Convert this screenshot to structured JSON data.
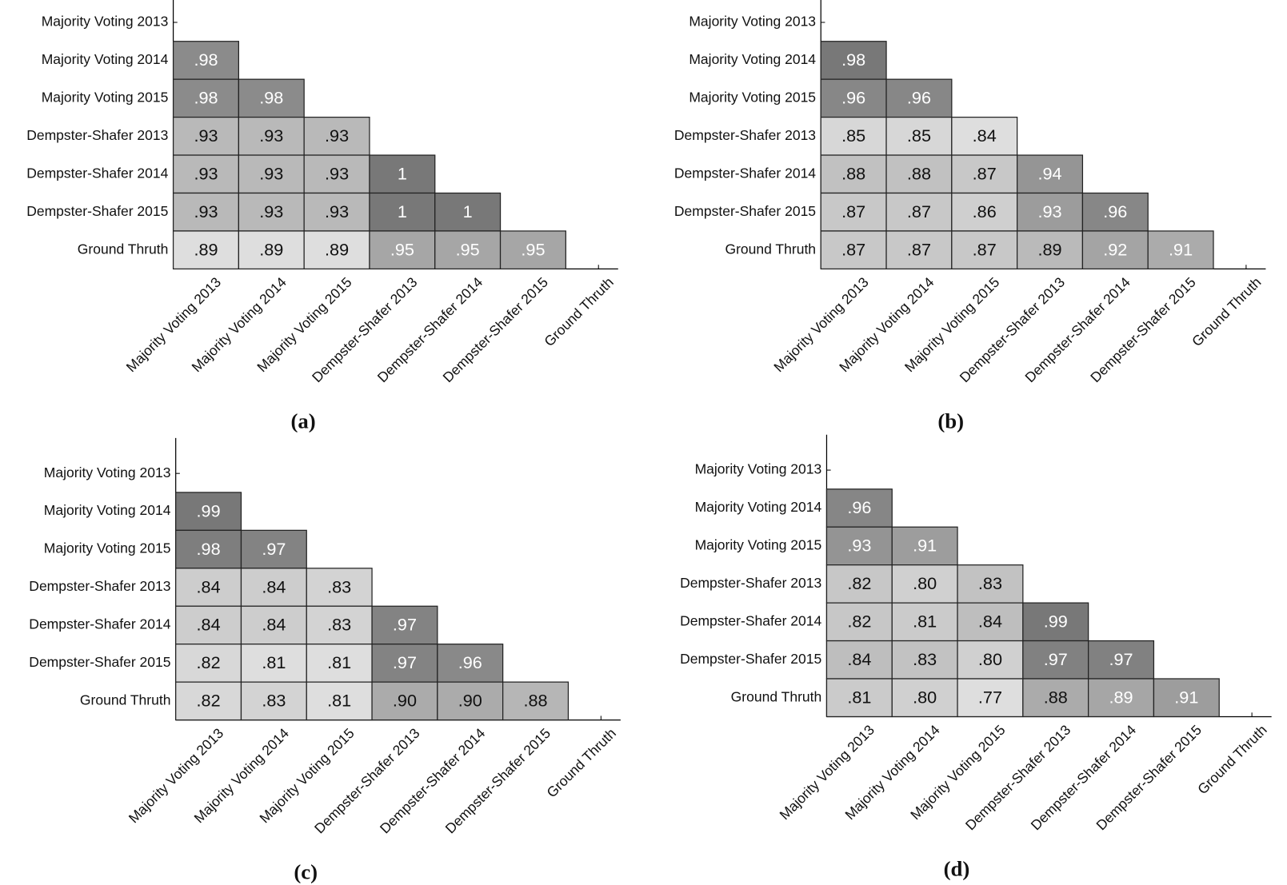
{
  "chart_data": [
    {
      "type": "heatmap",
      "caption": "(a)",
      "categories": [
        "Majority Voting 2013",
        "Majority Voting 2014",
        "Majority Voting 2015",
        "Dempster-Shafer 2013",
        "Dempster-Shafer 2014",
        "Dempster-Shafer 2015",
        "Ground Thruth"
      ],
      "values": [
        [],
        [
          0.98
        ],
        [
          0.98,
          0.98
        ],
        [
          0.93,
          0.93,
          0.93
        ],
        [
          0.93,
          0.93,
          0.93,
          1
        ],
        [
          0.93,
          0.93,
          0.93,
          1,
          1
        ],
        [
          0.89,
          0.89,
          0.89,
          0.95,
          0.95,
          0.95
        ]
      ],
      "value_labels": [
        [],
        [
          ".98"
        ],
        [
          ".98",
          ".98"
        ],
        [
          ".93",
          ".93",
          ".93"
        ],
        [
          ".93",
          ".93",
          ".93",
          "1"
        ],
        [
          ".93",
          ".93",
          ".93",
          "1",
          "1"
        ],
        [
          ".89",
          ".89",
          ".89",
          ".95",
          ".95",
          ".95"
        ]
      ]
    },
    {
      "type": "heatmap",
      "caption": "(b)",
      "categories": [
        "Majority Voting 2013",
        "Majority Voting 2014",
        "Majority Voting 2015",
        "Dempster-Shafer 2013",
        "Dempster-Shafer 2014",
        "Dempster-Shafer 2015",
        "Ground Thruth"
      ],
      "values": [
        [],
        [
          0.98
        ],
        [
          0.96,
          0.96
        ],
        [
          0.85,
          0.85,
          0.84
        ],
        [
          0.88,
          0.88,
          0.87,
          0.94
        ],
        [
          0.87,
          0.87,
          0.86,
          0.93,
          0.96
        ],
        [
          0.87,
          0.87,
          0.87,
          0.89,
          0.92,
          0.91
        ]
      ],
      "value_labels": [
        [],
        [
          ".98"
        ],
        [
          ".96",
          ".96"
        ],
        [
          ".85",
          ".85",
          ".84"
        ],
        [
          ".88",
          ".88",
          ".87",
          ".94"
        ],
        [
          ".87",
          ".87",
          ".86",
          ".93",
          ".96"
        ],
        [
          ".87",
          ".87",
          ".87",
          ".89",
          ".92",
          ".91"
        ]
      ]
    },
    {
      "type": "heatmap",
      "caption": "(c)",
      "categories": [
        "Majority Voting 2013",
        "Majority Voting 2014",
        "Majority Voting 2015",
        "Dempster-Shafer 2013",
        "Dempster-Shafer 2014",
        "Dempster-Shafer 2015",
        "Ground Thruth"
      ],
      "values": [
        [],
        [
          0.99
        ],
        [
          0.98,
          0.97
        ],
        [
          0.84,
          0.84,
          0.83
        ],
        [
          0.84,
          0.84,
          0.83,
          0.97
        ],
        [
          0.82,
          0.81,
          0.81,
          0.97,
          0.96
        ],
        [
          0.82,
          0.83,
          0.81,
          0.9,
          0.9,
          0.88
        ]
      ],
      "value_labels": [
        [],
        [
          ".99"
        ],
        [
          ".98",
          ".97"
        ],
        [
          ".84",
          ".84",
          ".83"
        ],
        [
          ".84",
          ".84",
          ".83",
          ".97"
        ],
        [
          ".82",
          ".81",
          ".81",
          ".97",
          ".96"
        ],
        [
          ".82",
          ".83",
          ".81",
          ".90",
          ".90",
          ".88"
        ]
      ]
    },
    {
      "type": "heatmap",
      "caption": "(d)",
      "categories": [
        "Majority Voting 2013",
        "Majority Voting 2014",
        "Majority Voting 2015",
        "Dempster-Shafer 2013",
        "Dempster-Shafer 2014",
        "Dempster-Shafer 2015",
        "Ground Thruth"
      ],
      "values": [
        [],
        [
          0.96
        ],
        [
          0.93,
          0.91
        ],
        [
          0.82,
          0.8,
          0.83
        ],
        [
          0.82,
          0.81,
          0.84,
          0.99
        ],
        [
          0.84,
          0.83,
          0.8,
          0.97,
          0.97
        ],
        [
          0.81,
          0.8,
          0.77,
          0.88,
          0.89,
          0.91
        ]
      ],
      "value_labels": [
        [],
        [
          ".96"
        ],
        [
          ".93",
          ".91"
        ],
        [
          ".82",
          ".80",
          ".83"
        ],
        [
          ".82",
          ".81",
          ".84",
          ".99"
        ],
        [
          ".84",
          ".83",
          ".80",
          ".97",
          ".97"
        ],
        [
          ".81",
          ".80",
          ".77",
          ".88",
          ".89",
          ".91"
        ]
      ]
    }
  ]
}
